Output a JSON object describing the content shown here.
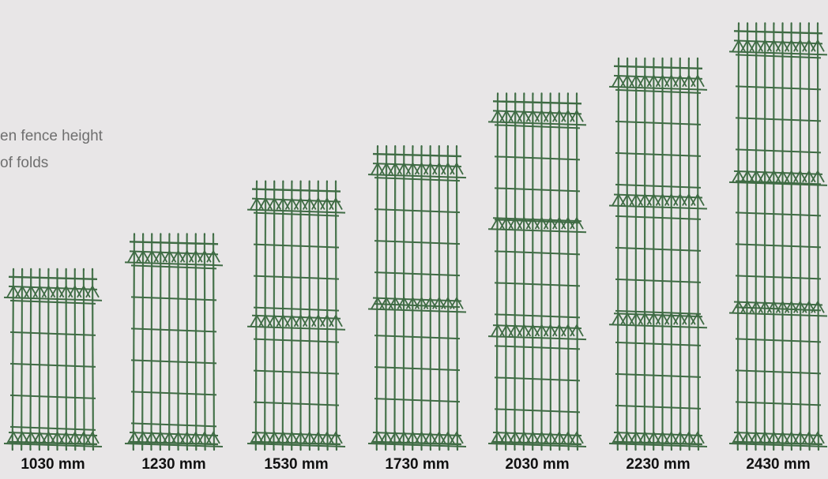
{
  "caption": {
    "line1": "en fence height",
    "line2": "of folds"
  },
  "colors": {
    "background": "#e8e6e7",
    "wire": "#3f6b44",
    "wire_highlight": "#7ea882",
    "caption_text": "#6f6f6f",
    "label_text": "#111111"
  },
  "panels": [
    {
      "label": "1030 mm",
      "height_mm": 1030,
      "folds": 2
    },
    {
      "label": "1230 mm",
      "height_mm": 1230,
      "folds": 2
    },
    {
      "label": "1530 mm",
      "height_mm": 1530,
      "folds": 3
    },
    {
      "label": "1730 mm",
      "height_mm": 1730,
      "folds": 3
    },
    {
      "label": "2030 mm",
      "height_mm": 2030,
      "folds": 4
    },
    {
      "label": "2230 mm",
      "height_mm": 2230,
      "folds": 4
    },
    {
      "label": "2430 mm",
      "height_mm": 2430,
      "folds": 4
    }
  ]
}
